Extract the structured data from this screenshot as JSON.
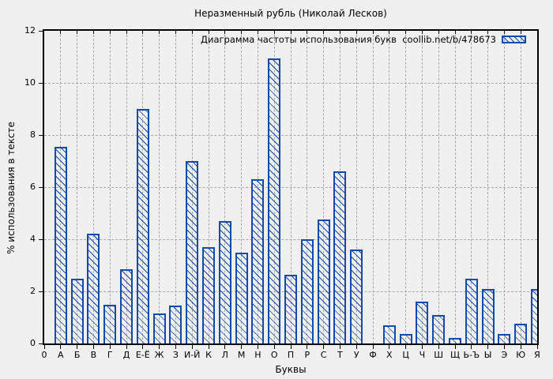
{
  "page": {
    "background": "#f0f0f0"
  },
  "chart_data": {
    "type": "bar",
    "title": "Неразменный рубль (Николай Лесков)",
    "legend_label": "Диаграмма частоты использования букв  coollib.net/b/478673",
    "xlabel": "Буквы",
    "ylabel": "% использования в тексте",
    "x_origin_label": "0",
    "ylim": [
      0,
      12
    ],
    "yticks": [
      0,
      2,
      4,
      6,
      8,
      10,
      12
    ],
    "grid": true,
    "legend_position": "top-right-inside",
    "bar_color": "#1149ac",
    "grid_color": "#a8a8a8",
    "axis_color": "#000000",
    "background_color": "#f0f0f0",
    "bar_style": "diagonal-hatch",
    "categories": [
      "А",
      "Б",
      "В",
      "Г",
      "Д",
      "Е-Ё",
      "Ж",
      "З",
      "И-Й",
      "К",
      "Л",
      "М",
      "Н",
      "О",
      "П",
      "Р",
      "С",
      "Т",
      "У",
      "Ф",
      "Х",
      "Ц",
      "Ч",
      "Ш",
      "Щ",
      "Ь-Ъ",
      "Ы",
      "Э",
      "Ю",
      "Я"
    ],
    "values": [
      7.55,
      2.5,
      4.2,
      1.5,
      2.85,
      9.0,
      1.15,
      1.45,
      7.0,
      3.7,
      4.7,
      3.5,
      6.3,
      10.95,
      2.65,
      4.0,
      4.75,
      6.6,
      3.6,
      0,
      0.7,
      0.35,
      1.6,
      1.1,
      0.2,
      2.5,
      2.1,
      0.35,
      0.75,
      2.1
    ]
  }
}
